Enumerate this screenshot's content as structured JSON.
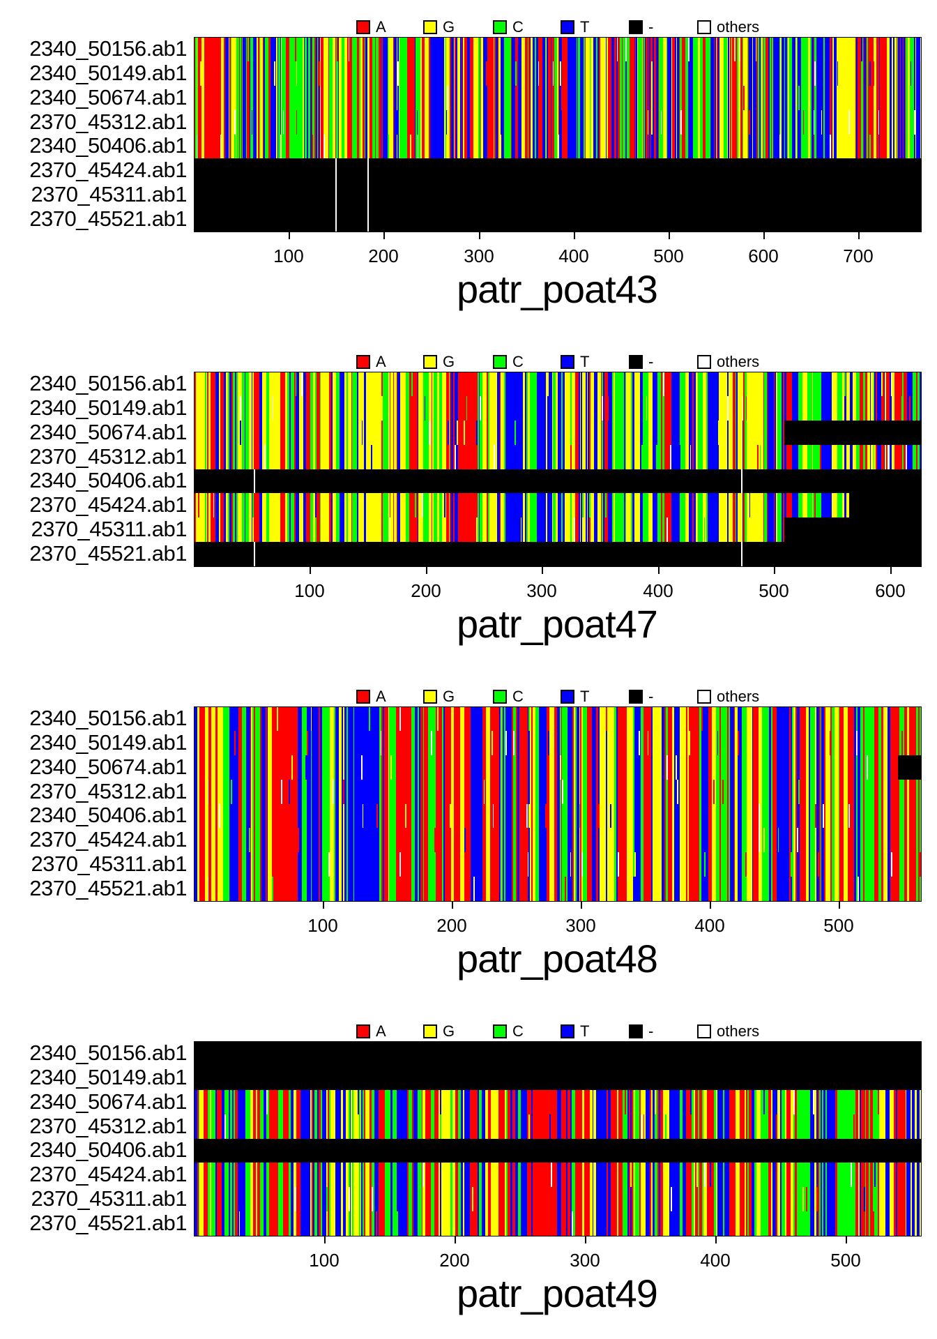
{
  "colors": {
    "A": "#ff0000",
    "G": "#ffff00",
    "C": "#00ff00",
    "T": "#0000ff",
    "gap": "#000000",
    "others": "#ffffff"
  },
  "legend": {
    "items": [
      {
        "label": "A",
        "key": "A"
      },
      {
        "label": "G",
        "key": "G"
      },
      {
        "label": "C",
        "key": "C"
      },
      {
        "label": "T",
        "key": "T"
      },
      {
        "label": "-",
        "key": "gap"
      },
      {
        "label": "others",
        "key": "others"
      }
    ]
  },
  "row_labels": [
    "2340_50156.ab1",
    "2340_50149.ab1",
    "2340_50674.ab1",
    "2370_45312.ab1",
    "2340_50406.ab1",
    "2370_45424.ab1",
    "2370_45311.ab1",
    "2370_45521.ab1"
  ],
  "chart_data": [
    {
      "type": "heatmap",
      "title": "patr_poat43",
      "length": 765,
      "xticks": [
        100,
        200,
        300,
        400,
        500,
        600,
        700
      ],
      "seed": 101,
      "run": 0.42,
      "weights": {
        "A": 0.28,
        "G": 0.21,
        "C": 0.21,
        "T": 0.3
      },
      "bands": [
        {
          "from": 10,
          "to": 24,
          "base": "A"
        },
        {
          "from": 250,
          "to": 262,
          "base": "T"
        },
        {
          "from": 676,
          "to": 694,
          "base": "G"
        }
      ],
      "rows": [
        {
          "black": []
        },
        {
          "black": []
        },
        {
          "black": []
        },
        {
          "black": []
        },
        {
          "black": []
        },
        {
          "black": [
            [
              0,
              765
            ]
          ]
        },
        {
          "black": [
            [
              0,
              765
            ]
          ]
        },
        {
          "black": [
            [
              0,
              765
            ]
          ]
        }
      ],
      "gap_separators": [
        148,
        182
      ]
    },
    {
      "type": "heatmap",
      "title": "patr_poat47",
      "length": 626,
      "xticks": [
        100,
        200,
        300,
        400,
        500,
        600
      ],
      "seed": 202,
      "run": 0.5,
      "weights": {
        "A": 0.2,
        "G": 0.32,
        "C": 0.26,
        "T": 0.22
      },
      "bands": [
        {
          "from": 148,
          "to": 160,
          "base": "G"
        },
        {
          "from": 234,
          "to": 243,
          "base": "A"
        },
        {
          "from": 268,
          "to": 282,
          "base": "T"
        },
        {
          "from": 476,
          "to": 489,
          "base": "G"
        }
      ],
      "rows": [
        {
          "black": []
        },
        {
          "black": []
        },
        {
          "black": [
            [
              508,
              626
            ]
          ]
        },
        {
          "black": []
        },
        {
          "black": [
            [
              0,
              626
            ]
          ]
        },
        {
          "black": [
            [
              564,
              626
            ]
          ]
        },
        {
          "black": [
            [
              508,
              626
            ]
          ]
        },
        {
          "black": [
            [
              0,
              626
            ]
          ]
        }
      ],
      "gap_separators": [
        51,
        471
      ]
    },
    {
      "type": "heatmap",
      "title": "patr_poat48",
      "length": 563,
      "xticks": [
        100,
        200,
        300,
        400,
        500
      ],
      "seed": 303,
      "run": 0.55,
      "weights": {
        "A": 0.33,
        "G": 0.2,
        "C": 0.23,
        "T": 0.24
      },
      "bands": [
        {
          "from": 0,
          "to": 1,
          "base": "T"
        },
        {
          "from": 60,
          "to": 78,
          "base": "A"
        },
        {
          "from": 128,
          "to": 142,
          "base": "T"
        },
        {
          "from": 453,
          "to": 459,
          "base": "T"
        }
      ],
      "rows": [
        {
          "black": []
        },
        {
          "black": []
        },
        {
          "black": [
            [
              545,
              563
            ]
          ]
        },
        {
          "black": []
        },
        {
          "black": []
        },
        {
          "black": []
        },
        {
          "black": []
        },
        {
          "black": []
        }
      ],
      "gap_separators": []
    },
    {
      "type": "heatmap",
      "title": "patr_poat49",
      "length": 557,
      "xticks": [
        100,
        200,
        300,
        400,
        500
      ],
      "seed": 404,
      "run": 0.45,
      "weights": {
        "A": 0.3,
        "G": 0.21,
        "C": 0.25,
        "T": 0.24
      },
      "bands": [
        {
          "from": 0,
          "to": 1,
          "base": "T"
        },
        {
          "from": 260,
          "to": 276,
          "base": "A"
        },
        {
          "from": 493,
          "to": 506,
          "base": "C"
        }
      ],
      "rows": [
        {
          "black": [
            [
              0,
              557
            ]
          ]
        },
        {
          "black": [
            [
              0,
              557
            ]
          ]
        },
        {
          "black": []
        },
        {
          "black": []
        },
        {
          "black": [
            [
              0,
              557
            ]
          ]
        },
        {
          "black": []
        },
        {
          "black": []
        },
        {
          "black": []
        }
      ],
      "gap_separators": []
    }
  ]
}
